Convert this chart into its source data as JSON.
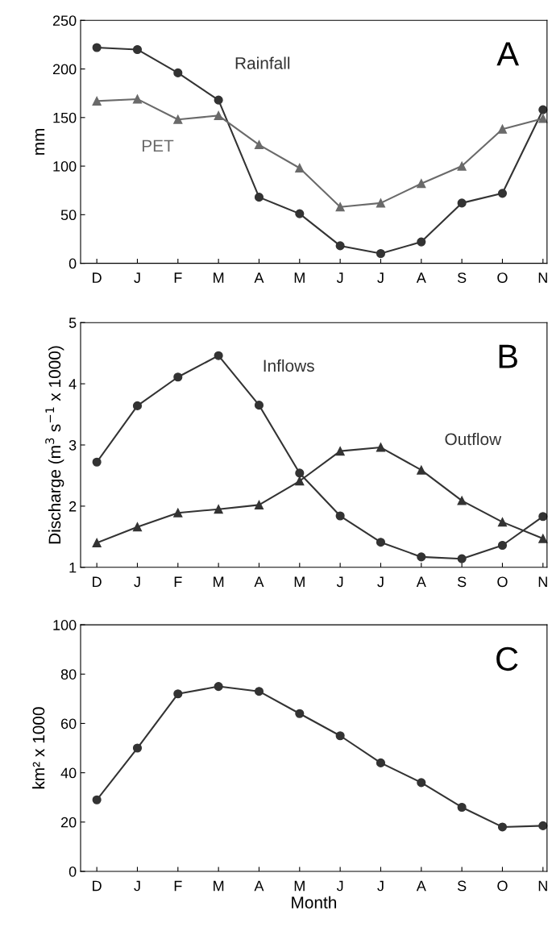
{
  "chart_data": [
    {
      "type": "line",
      "title": "A",
      "ylabel": "mm",
      "categories": [
        "D",
        "J",
        "F",
        "M",
        "A",
        "M",
        "J",
        "J",
        "A",
        "S",
        "O",
        "N"
      ],
      "ylim": [
        0,
        250
      ],
      "yticks": [
        0,
        50,
        100,
        150,
        200,
        250
      ],
      "grid": false,
      "legend": false,
      "series": [
        {
          "name": "Rainfall",
          "color": "#333333",
          "marker": "circle",
          "values": [
            222,
            220,
            196,
            168,
            68,
            51,
            18,
            10,
            22,
            62,
            72,
            158
          ]
        },
        {
          "name": "PET",
          "color": "#6a6a6a",
          "marker": "triangle",
          "values": [
            167,
            169,
            148,
            152,
            122,
            98,
            58,
            62,
            82,
            100,
            138,
            149
          ]
        }
      ]
    },
    {
      "type": "line",
      "title": "B",
      "ylabel": "Discharge (m$^{3}$ s$^{−1}$ x 1000)",
      "categories": [
        "D",
        "J",
        "F",
        "M",
        "A",
        "M",
        "J",
        "J",
        "A",
        "S",
        "O",
        "N"
      ],
      "ylim": [
        1,
        5
      ],
      "yticks": [
        1,
        2,
        3,
        4,
        5
      ],
      "grid": false,
      "legend": false,
      "series": [
        {
          "name": "Inflows",
          "color": "#333333",
          "marker": "circle",
          "values": [
            2.72,
            3.64,
            4.11,
            4.46,
            3.65,
            2.54,
            1.84,
            1.41,
            1.17,
            1.14,
            1.36,
            1.83
          ]
        },
        {
          "name": "Outflow",
          "color": "#333333",
          "marker": "triangle",
          "values": [
            1.4,
            1.66,
            1.89,
            1.95,
            2.02,
            2.41,
            2.9,
            2.96,
            2.59,
            2.09,
            1.74,
            1.47
          ]
        }
      ]
    },
    {
      "type": "line",
      "title": "C",
      "ylabel": "km² x 1000",
      "xlabel": "Month",
      "categories": [
        "D",
        "J",
        "F",
        "M",
        "A",
        "M",
        "J",
        "J",
        "A",
        "S",
        "O",
        "N"
      ],
      "ylim": [
        0,
        100
      ],
      "yticks": [
        0,
        20,
        40,
        60,
        80,
        100
      ],
      "grid": false,
      "legend": false,
      "series": [
        {
          "color": "#333333",
          "marker": "circle",
          "values": [
            29,
            50,
            72,
            75,
            73,
            64,
            55,
            44,
            36,
            26,
            18,
            18.5
          ]
        }
      ]
    }
  ]
}
